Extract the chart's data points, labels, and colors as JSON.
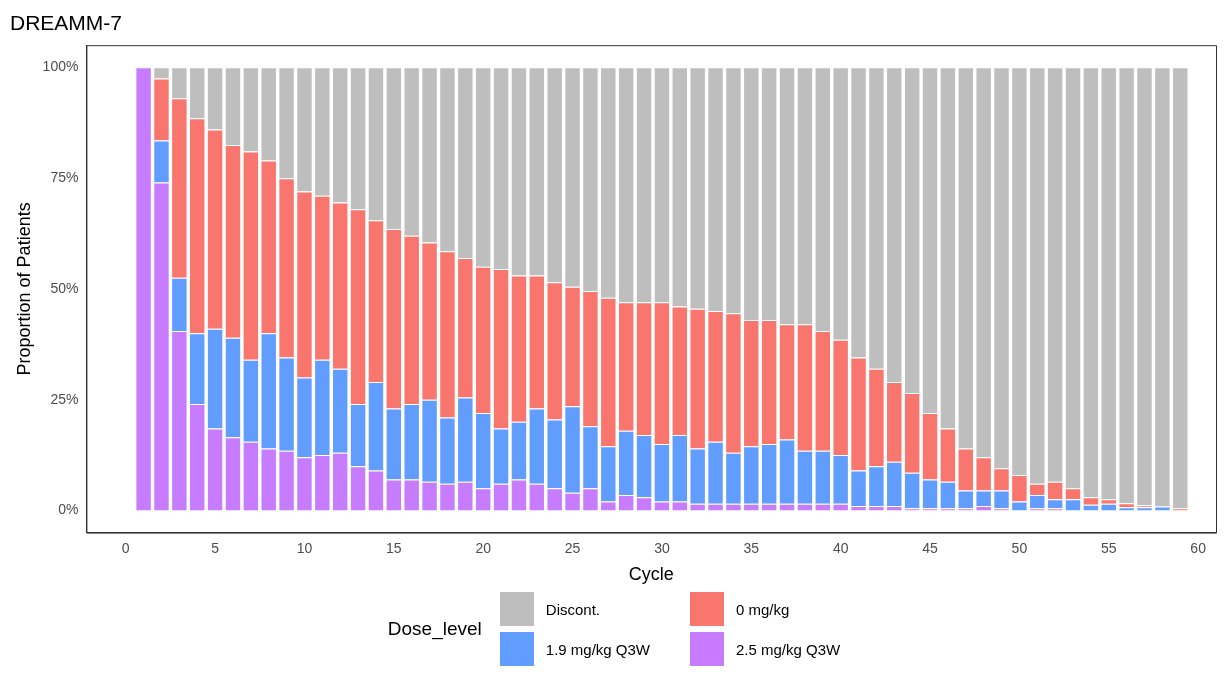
{
  "chart_data": {
    "type": "bar",
    "title": "DREAMM-7",
    "xlabel": "Cycle",
    "ylabel": "Proportion of Patients",
    "legend_title": "Dose_level",
    "legend": "bottom",
    "stacked": true,
    "x": [
      1,
      2,
      3,
      4,
      5,
      6,
      7,
      8,
      9,
      10,
      11,
      12,
      13,
      14,
      15,
      16,
      17,
      18,
      19,
      20,
      21,
      22,
      23,
      24,
      25,
      26,
      27,
      28,
      29,
      30,
      31,
      32,
      33,
      34,
      35,
      36,
      37,
      38,
      39,
      40,
      41,
      42,
      43,
      44,
      45,
      46,
      47,
      48,
      49,
      50,
      51,
      52,
      53,
      54,
      55,
      56,
      57,
      58,
      59
    ],
    "xlim": [
      -2.2,
      61
    ],
    "xticks": [
      0,
      5,
      10,
      15,
      20,
      25,
      30,
      35,
      40,
      45,
      50,
      55,
      60
    ],
    "ylim": [
      -5,
      105
    ],
    "yticks": [
      {
        "value": 0,
        "label": "0%"
      },
      {
        "value": 25,
        "label": "25%"
      },
      {
        "value": 50,
        "label": "50%"
      },
      {
        "value": 75,
        "label": "75%"
      },
      {
        "value": 100,
        "label": "100%"
      }
    ],
    "series": [
      {
        "name": "2.5 mg/kg Q3W",
        "color": "#c77cff",
        "values": [
          100,
          74,
          40.5,
          24,
          18.5,
          16.5,
          15.5,
          14,
          13.5,
          12,
          12.5,
          13,
          10,
          9,
          7,
          7,
          6.5,
          6,
          6.5,
          5,
          6,
          7,
          6,
          5,
          4,
          5,
          2,
          3.5,
          3,
          2,
          2,
          1.5,
          1.5,
          1.5,
          1.5,
          1.5,
          1.5,
          1.5,
          1.5,
          1.5,
          1,
          1,
          1,
          0.5,
          0.5,
          0.5,
          0.5,
          1,
          0.5,
          0,
          0.5,
          0.5,
          0,
          0,
          0,
          0,
          0,
          0,
          0
        ]
      },
      {
        "name": "1.9 mg/kg Q3W",
        "color": "#619cff",
        "values": [
          0,
          9.5,
          12,
          16,
          22.5,
          22.5,
          18.5,
          26,
          21,
          18,
          21.5,
          19,
          14,
          20,
          16,
          17,
          18.5,
          15,
          19,
          17,
          12.5,
          13,
          17,
          15.5,
          19.5,
          14,
          12.5,
          14.5,
          14,
          13,
          15,
          12.5,
          14,
          11.5,
          13,
          13.5,
          14.5,
          12,
          12,
          11,
          8,
          9,
          10,
          8,
          6.5,
          6,
          4,
          3.5,
          4,
          2,
          3,
          2,
          2.5,
          1.3,
          1.5,
          0.7,
          0.7,
          0.9,
          0
        ]
      },
      {
        "name": "0 mg/kg",
        "color": "#f8766d",
        "values": [
          0,
          14,
          40.5,
          48.5,
          45,
          43.5,
          47,
          39,
          40.5,
          42,
          37,
          37.5,
          44,
          36.5,
          40.5,
          38,
          35.5,
          37.5,
          31.5,
          33,
          36,
          33,
          30,
          31,
          27,
          30.5,
          33.5,
          29,
          30,
          32,
          29,
          31.5,
          29.5,
          31.5,
          28.5,
          28,
          26,
          28.5,
          27,
          26,
          25.5,
          22,
          18,
          18,
          15,
          12,
          9.5,
          7.5,
          5,
          6,
          2.5,
          4,
          2.5,
          1.7,
          1,
          0.9,
          0.5,
          0,
          0.5
        ]
      },
      {
        "name": "Discont.",
        "color": "#bebebe",
        "values": [
          0,
          2.5,
          7,
          11.5,
          14,
          17.5,
          19,
          21,
          25,
          28,
          29,
          30.5,
          32,
          34.5,
          36.5,
          38,
          39.5,
          41.5,
          43,
          45,
          45.5,
          47,
          47,
          48.5,
          49.5,
          50.5,
          52,
          53,
          53,
          53,
          54,
          54.5,
          55,
          55.5,
          57,
          57,
          58,
          58,
          59.5,
          61.5,
          65.5,
          68,
          71,
          73.5,
          78,
          81.5,
          86,
          88,
          90.5,
          92,
          94,
          93.5,
          95,
          97,
          97.5,
          98.4,
          98.8,
          99.1,
          99.5
        ]
      }
    ]
  }
}
